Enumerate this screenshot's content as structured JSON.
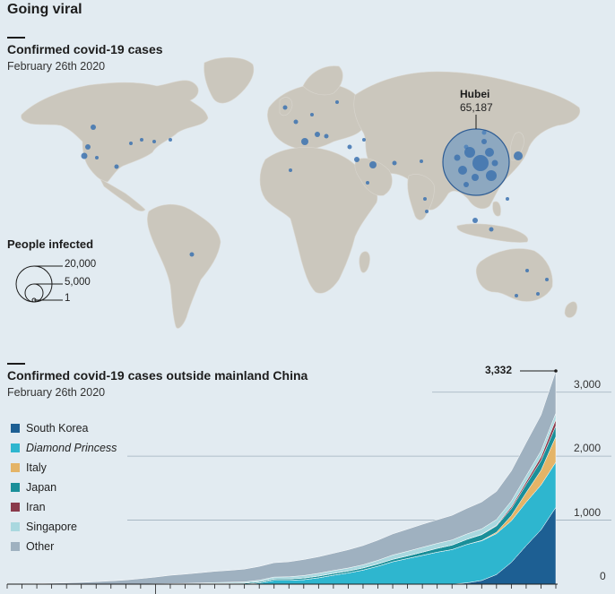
{
  "title": "Going viral",
  "map": {
    "title": "Confirmed covid-19 cases",
    "subtitle": "February 26th 2020",
    "hubei": {
      "name": "Hubei",
      "value": "65,187"
    },
    "size_legend": {
      "title": "People infected",
      "labels": [
        "20,000",
        "5,000",
        "1"
      ]
    },
    "colors": {
      "land": "#cbc7bd",
      "ocean": "#e2ebf1",
      "bubble": "#3c72b0"
    }
  },
  "chart": {
    "title": "Confirmed covid-19 cases outside mainland China",
    "subtitle": "February 26th 2020",
    "callout": "3,332",
    "legend": [
      {
        "name": "South Korea",
        "color": "#1d5f93",
        "italic": false
      },
      {
        "name": "Diamond Princess",
        "color": "#2eb6cf",
        "italic": true
      },
      {
        "name": "Italy",
        "color": "#e4b467",
        "italic": false
      },
      {
        "name": "Japan",
        "color": "#1a8f99",
        "italic": false
      },
      {
        "name": "Iran",
        "color": "#8a3a4b",
        "italic": false
      },
      {
        "name": "Singapore",
        "color": "#a9d8df",
        "italic": false
      },
      {
        "name": "Other",
        "color": "#9fb1c0",
        "italic": false
      }
    ]
  },
  "chart_data": {
    "type": "area",
    "title": "Confirmed covid-19 cases outside mainland China",
    "subtitle": "February 26th 2020",
    "ylim": [
      0,
      3332
    ],
    "yticks": [
      0,
      1000,
      2000,
      3000
    ],
    "ytick_labels": [
      "0",
      "1,000",
      "2,000",
      "3,000"
    ],
    "grid": true,
    "legend_position": "left",
    "annotation": {
      "text": "3,332",
      "value": 3332
    },
    "x": [
      1,
      2,
      3,
      4,
      5,
      6,
      7,
      8,
      9,
      10,
      11,
      12,
      13,
      14,
      15,
      16,
      17,
      18,
      19,
      20,
      21,
      22,
      23,
      24,
      25,
      26,
      27,
      28,
      29,
      30,
      31,
      32,
      33,
      34,
      35,
      36,
      37,
      38
    ],
    "series": [
      {
        "name": "South Korea",
        "values": [
          0,
          0,
          0,
          0,
          0,
          0,
          0,
          0,
          0,
          0,
          0,
          0,
          0,
          0,
          0,
          0,
          0,
          0,
          0,
          0,
          0,
          0,
          0,
          0,
          0,
          0,
          0,
          0,
          0,
          0,
          0,
          20,
          58,
          150,
          340,
          600,
          850,
          1200
        ]
      },
      {
        "name": "Diamond Princess",
        "values": [
          0,
          0,
          0,
          0,
          0,
          0,
          0,
          0,
          0,
          0,
          0,
          0,
          0,
          0,
          0,
          0,
          0,
          20,
          60,
          60,
          70,
          100,
          140,
          175,
          220,
          280,
          350,
          400,
          450,
          500,
          540,
          600,
          620,
          640,
          650,
          680,
          700,
          705
        ]
      },
      {
        "name": "Italy",
        "values": [
          0,
          0,
          0,
          0,
          0,
          0,
          0,
          0,
          0,
          0,
          0,
          0,
          0,
          0,
          0,
          0,
          0,
          0,
          0,
          0,
          0,
          0,
          0,
          0,
          0,
          0,
          0,
          0,
          0,
          0,
          0,
          0,
          5,
          20,
          80,
          150,
          230,
          400
        ]
      },
      {
        "name": "Japan",
        "values": [
          0,
          0,
          0,
          0,
          0,
          0,
          0,
          0,
          0,
          1,
          2,
          4,
          5,
          8,
          10,
          12,
          15,
          18,
          20,
          22,
          25,
          26,
          28,
          30,
          33,
          35,
          38,
          42,
          50,
          60,
          70,
          80,
          90,
          100,
          110,
          130,
          150,
          170
        ]
      },
      {
        "name": "Iran",
        "values": [
          0,
          0,
          0,
          0,
          0,
          0,
          0,
          0,
          0,
          0,
          0,
          0,
          0,
          0,
          0,
          0,
          0,
          0,
          0,
          0,
          0,
          0,
          0,
          0,
          0,
          0,
          0,
          0,
          0,
          0,
          0,
          0,
          5,
          10,
          30,
          40,
          60,
          100
        ]
      },
      {
        "name": "Singapore",
        "values": [
          0,
          0,
          0,
          0,
          0,
          0,
          0,
          0,
          0,
          1,
          3,
          5,
          7,
          10,
          15,
          18,
          20,
          24,
          30,
          33,
          40,
          43,
          45,
          47,
          50,
          58,
          67,
          72,
          75,
          77,
          80,
          84,
          86,
          89,
          89,
          91,
          93,
          96
        ]
      },
      {
        "name": "Other",
        "values": [
          2,
          4,
          8,
          14,
          20,
          28,
          38,
          50,
          65,
          85,
          105,
          130,
          145,
          160,
          175,
          185,
          200,
          215,
          225,
          235,
          250,
          260,
          270,
          285,
          300,
          315,
          330,
          345,
          360,
          370,
          385,
          400,
          420,
          440,
          470,
          520,
          560,
          661
        ]
      }
    ]
  }
}
